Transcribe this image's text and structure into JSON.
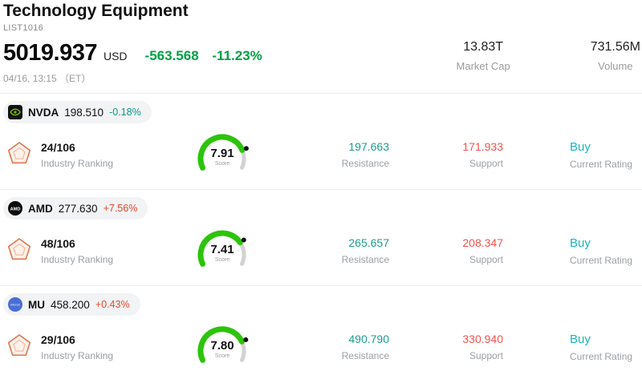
{
  "header": {
    "title": "Technology Equipment",
    "list_id": "LIST1016",
    "price": "5019.937",
    "currency": "USD",
    "change": "-563.568",
    "change_pct": "-11.23%",
    "change_color": "#00a046",
    "timestamp": "04/16, 13:15 （ET）",
    "stats": [
      {
        "value": "13.83T",
        "label": "Market Cap"
      },
      {
        "value": "731.56M",
        "label": "Volume"
      }
    ]
  },
  "labels": {
    "industry_ranking": "Industry Ranking",
    "score": "Score",
    "resistance": "Resistance",
    "support": "Support",
    "current_rating": "Current Rating"
  },
  "colors": {
    "up_red": "#e5472d",
    "down_green": "#089981",
    "resistance": "#1b9e8e",
    "support": "#f0544c",
    "rating": "#16b6c2",
    "gauge_green": "#2cc40a",
    "gauge_track": "#d2d2d2",
    "gauge_dot": "#111111"
  },
  "icons": {
    "ranking_icon": "pentagon-radar-icon",
    "stock_logos": [
      "nvidia-logo",
      "amd-logo",
      "micron-logo"
    ]
  },
  "stocks": [
    {
      "ticker": "NVDA",
      "price": "198.510",
      "change": "-0.18%",
      "change_color": "#089981",
      "logo_label": "",
      "ranking": "24/106",
      "score": "7.91",
      "resistance": "197.663",
      "support": "171.933",
      "rating": "Buy"
    },
    {
      "ticker": "AMD",
      "price": "277.630",
      "change": "+7.56%",
      "change_color": "#e5472d",
      "logo_label": "AMD",
      "ranking": "48/106",
      "score": "7.41",
      "resistance": "265.657",
      "support": "208.347",
      "rating": "Buy"
    },
    {
      "ticker": "MU",
      "price": "458.200",
      "change": "+0.43%",
      "change_color": "#e5472d",
      "logo_label": "micron",
      "ranking": "29/106",
      "score": "7.80",
      "resistance": "490.790",
      "support": "330.940",
      "rating": "Buy"
    }
  ]
}
